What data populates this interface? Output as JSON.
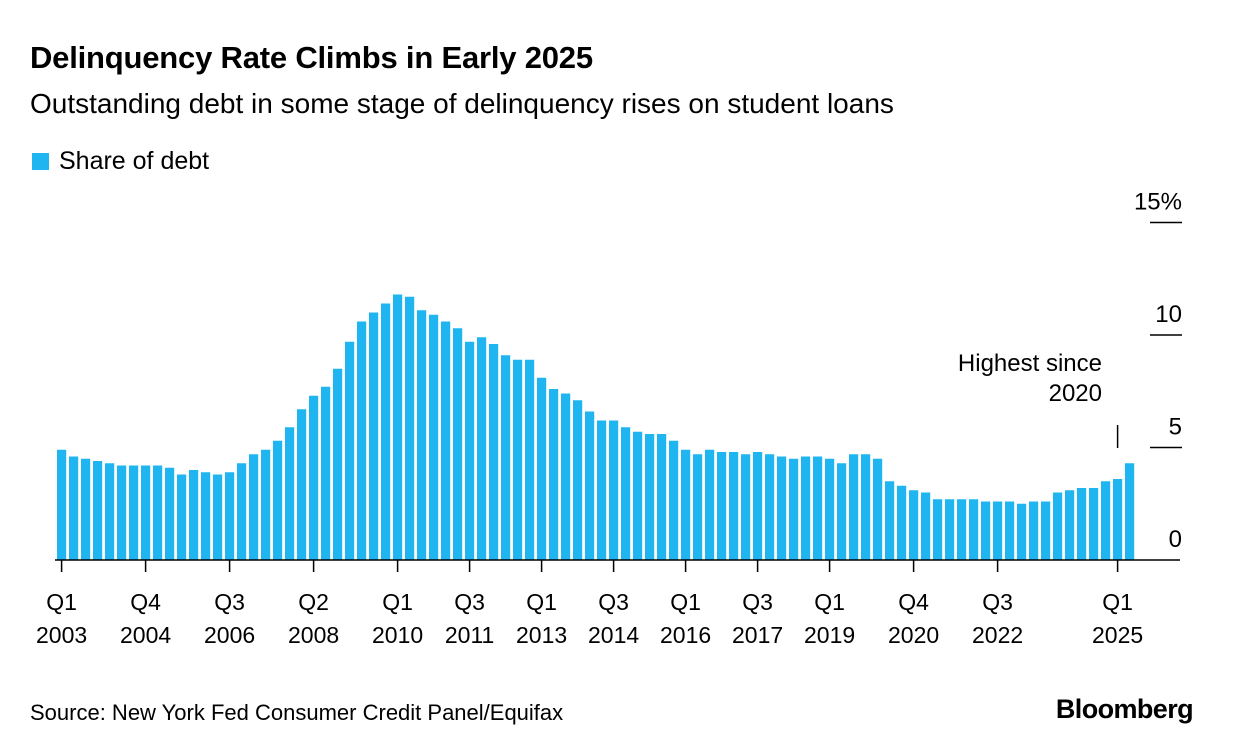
{
  "title": "Delinquency Rate Climbs in Early 2025",
  "subtitle": "Outstanding debt in some stage of delinquency rises on student loans",
  "legend_label": "Share of debt",
  "source": "Source: New York Fed Consumer Credit Panel/Equifax",
  "logo": "Bloomberg",
  "colors": {
    "bar": "#1eb5f0",
    "axis": "#000000"
  },
  "chart_data": {
    "type": "bar",
    "series_name": "Share of debt",
    "ylim": [
      0,
      15
    ],
    "y_ticks": [
      {
        "value": 15,
        "label": "15%"
      },
      {
        "value": 10,
        "label": "10"
      },
      {
        "value": 5,
        "label": "5"
      },
      {
        "value": 0,
        "label": "0"
      }
    ],
    "x_ticks": [
      {
        "index": 0,
        "q": "Q1",
        "year": "2003"
      },
      {
        "index": 7,
        "q": "Q4",
        "year": "2004"
      },
      {
        "index": 14,
        "q": "Q3",
        "year": "2006"
      },
      {
        "index": 21,
        "q": "Q2",
        "year": "2008"
      },
      {
        "index": 28,
        "q": "Q1",
        "year": "2010"
      },
      {
        "index": 34,
        "q": "Q3",
        "year": "2011"
      },
      {
        "index": 40,
        "q": "Q1",
        "year": "2013"
      },
      {
        "index": 46,
        "q": "Q3",
        "year": "2014"
      },
      {
        "index": 52,
        "q": "Q1",
        "year": "2016"
      },
      {
        "index": 58,
        "q": "Q3",
        "year": "2017"
      },
      {
        "index": 64,
        "q": "Q1",
        "year": "2019"
      },
      {
        "index": 71,
        "q": "Q4",
        "year": "2020"
      },
      {
        "index": 78,
        "q": "Q3",
        "year": "2022"
      },
      {
        "index": 88,
        "q": "Q1",
        "year": "2025"
      }
    ],
    "annotation": {
      "index": 88,
      "line1": "Highest since",
      "line2": "2020"
    },
    "values": [
      4.9,
      4.6,
      4.5,
      4.4,
      4.3,
      4.2,
      4.2,
      4.2,
      4.2,
      4.1,
      3.8,
      4.0,
      3.9,
      3.8,
      3.9,
      4.3,
      4.7,
      4.9,
      5.3,
      5.9,
      6.7,
      7.3,
      7.7,
      8.5,
      9.7,
      10.6,
      11.0,
      11.4,
      11.8,
      11.7,
      11.1,
      10.9,
      10.6,
      10.3,
      9.7,
      9.9,
      9.6,
      9.1,
      8.9,
      8.9,
      8.1,
      7.6,
      7.4,
      7.1,
      6.6,
      6.2,
      6.2,
      5.9,
      5.7,
      5.6,
      5.6,
      5.3,
      4.9,
      4.7,
      4.9,
      4.8,
      4.8,
      4.7,
      4.8,
      4.7,
      4.6,
      4.5,
      4.6,
      4.6,
      4.5,
      4.3,
      4.7,
      4.7,
      4.5,
      3.5,
      3.3,
      3.1,
      3.0,
      2.7,
      2.7,
      2.7,
      2.7,
      2.6,
      2.6,
      2.6,
      2.5,
      2.6,
      2.6,
      3.0,
      3.1,
      3.2,
      3.2,
      3.5,
      3.6,
      4.3
    ]
  }
}
